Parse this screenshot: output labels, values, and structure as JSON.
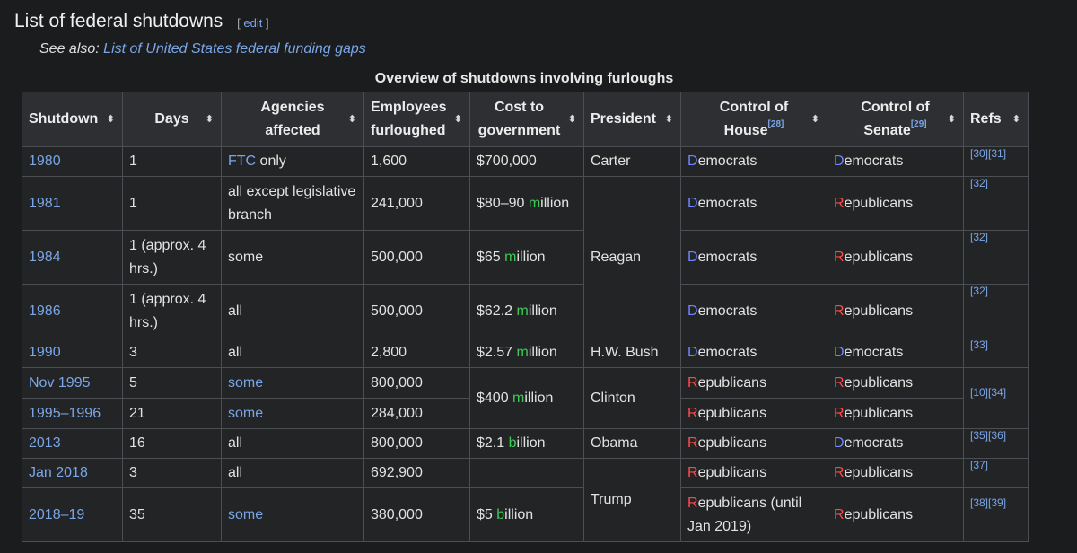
{
  "heading": {
    "title": "List of federal shutdowns",
    "edit_label": "edit"
  },
  "see_also": {
    "prefix": "See also:",
    "link": "List of United States federal funding gaps"
  },
  "caption": "Overview of shutdowns involving furloughs",
  "columns": {
    "shutdown": "Shutdown",
    "days": "Days",
    "agencies_1": "Agencies",
    "agencies_2": "affected",
    "employees_1": "Employees",
    "employees_2": "furloughed",
    "cost_1": "Cost to",
    "cost_2": "government",
    "president": "President",
    "house_1": "Control of",
    "house_2": "House",
    "house_ref": "[28]",
    "senate_1": "Control of",
    "senate_2": "Senate",
    "senate_ref": "[29]",
    "refs": "Refs"
  },
  "rows": [
    {
      "shutdown": "1980",
      "days": "1",
      "agencies_link": "FTC",
      "agencies_suffix": " only",
      "employees": "1,600",
      "cost": "$700,000",
      "president": "Carter",
      "house_initial": "D",
      "house_rest": "emocrats",
      "senate_initial": "D",
      "senate_rest": "emocrats",
      "refs": "[30][31]"
    },
    {
      "shutdown": "1981",
      "days": "1",
      "agencies": "all except legislative branch",
      "employees": "241,000",
      "cost_a": "$80–90 ",
      "cost_unit_initial": "m",
      "cost_unit_rest": "illion",
      "house_initial": "D",
      "house_rest": "emocrats",
      "senate_initial": "R",
      "senate_rest": "epublicans",
      "refs": "[32]"
    },
    {
      "shutdown": "1984",
      "days": "1 (approx. 4 hrs.)",
      "agencies": "some",
      "employees": "500,000",
      "cost_a": "$65 ",
      "cost_unit_initial": "m",
      "cost_unit_rest": "illion",
      "house_initial": "D",
      "house_rest": "emocrats",
      "senate_initial": "R",
      "senate_rest": "epublicans",
      "refs": "[32]"
    },
    {
      "shutdown": "1986",
      "days": "1 (approx. 4 hrs.)",
      "agencies": "all",
      "employees": "500,000",
      "cost_a": "$62.2 ",
      "cost_unit_initial": "m",
      "cost_unit_rest": "illion",
      "house_initial": "D",
      "house_rest": "emocrats",
      "senate_initial": "R",
      "senate_rest": "epublicans",
      "refs": "[32]"
    },
    {
      "shutdown": "1990",
      "days": "3",
      "agencies": "all",
      "employees": "2,800",
      "cost_a": "$2.57 ",
      "cost_unit_initial": "m",
      "cost_unit_rest": "illion",
      "president": "H.W. Bush",
      "house_initial": "D",
      "house_rest": "emocrats",
      "senate_initial": "D",
      "senate_rest": "emocrats",
      "refs": "[33]"
    },
    {
      "shutdown": "Nov 1995",
      "days": "5",
      "agencies_link": "some",
      "employees": "800,000",
      "cost_a": "$400 ",
      "cost_unit_initial": "m",
      "cost_unit_rest": "illion",
      "president": "Clinton",
      "house_initial": "R",
      "house_rest": "epublicans",
      "senate_initial": "R",
      "senate_rest": "epublicans",
      "refs": "[10][34]"
    },
    {
      "shutdown": "1995–1996",
      "days": "21",
      "agencies_link": "some",
      "employees": "284,000",
      "house_initial": "R",
      "house_rest": "epublicans",
      "senate_initial": "R",
      "senate_rest": "epublicans"
    },
    {
      "shutdown": "2013",
      "days": "16",
      "agencies": "all",
      "employees": "800,000",
      "cost_a": "$2.1 ",
      "cost_unit_initial": "b",
      "cost_unit_rest": "illion",
      "president": "Obama",
      "house_initial": "R",
      "house_rest": "epublicans",
      "senate_initial": "D",
      "senate_rest": "emocrats",
      "refs": "[35][36]"
    },
    {
      "shutdown": "Jan 2018",
      "days": "3",
      "agencies": "all",
      "employees": "692,900",
      "president": "Trump",
      "house_initial": "R",
      "house_rest": "epublicans",
      "senate_initial": "R",
      "senate_rest": "epublicans",
      "refs": "[37]"
    },
    {
      "shutdown": "2018–19",
      "days": "35",
      "agencies_link": "some",
      "employees": "380,000",
      "cost_a": "$5 ",
      "cost_unit_initial": "b",
      "cost_unit_rest": "illion",
      "house_initial": "R",
      "house_rest": "epublicans (until Jan 2019)",
      "senate_initial": "R",
      "senate_rest": "epublicans",
      "refs": "[38][39]"
    }
  ],
  "shared": {
    "reagan": "Reagan"
  },
  "colors": {
    "democrat": "#6d87ff",
    "republican": "#ff4a4a",
    "unit": "#3ec95a",
    "link": "#7aa6e8"
  }
}
